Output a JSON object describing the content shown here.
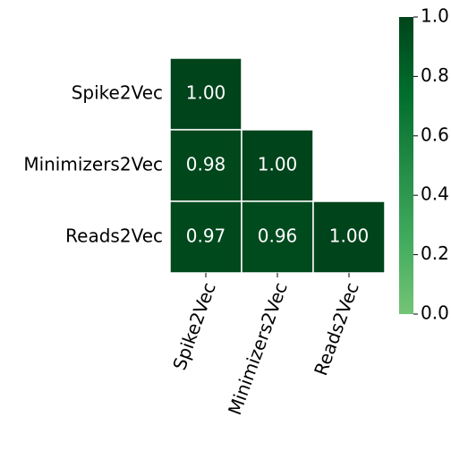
{
  "chart_data": {
    "type": "heatmap",
    "rows": [
      "Spike2Vec",
      "Minimizers2Vec",
      "Reads2Vec"
    ],
    "columns": [
      "Spike2Vec",
      "Minimizers2Vec",
      "Reads2Vec"
    ],
    "values": [
      [
        1.0,
        null,
        null
      ],
      [
        0.98,
        1.0,
        null
      ],
      [
        0.97,
        0.96,
        1.0
      ]
    ],
    "value_labels": [
      [
        "1.00",
        null,
        null
      ],
      [
        "0.98",
        "1.00",
        null
      ],
      [
        "0.97",
        "0.96",
        "1.00"
      ]
    ],
    "colormap": [
      "#74c476",
      "#41ab5d",
      "#238b45",
      "#006d2c",
      "#00441b"
    ],
    "clim": [
      0,
      1
    ],
    "cticks": [
      {
        "value": 0,
        "label": "0.0"
      },
      0.2,
      0.4,
      0.6,
      0.8,
      {
        "value": 1,
        "label": "1.0"
      }
    ]
  }
}
